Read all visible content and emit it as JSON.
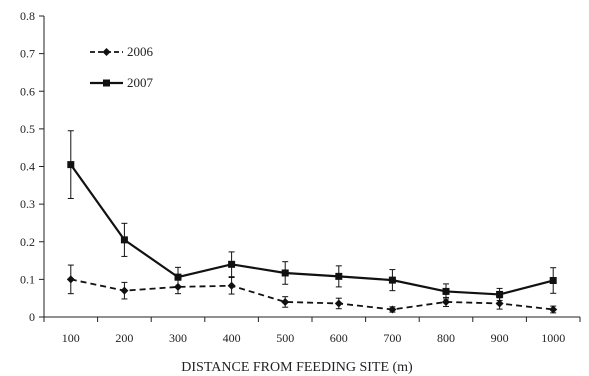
{
  "chart_data": {
    "type": "line",
    "title": "",
    "xlabel": "DISTANCE FROM FEEDING SITE (m)",
    "ylabel": "",
    "x": [
      100,
      200,
      300,
      400,
      500,
      600,
      700,
      800,
      900,
      1000
    ],
    "x_tick_labels": [
      "100",
      "200",
      "300",
      "400",
      "500",
      "600",
      "700",
      "800",
      "900",
      "1000"
    ],
    "y_tick_labels": [
      "0",
      "0.1",
      "0.2",
      "0.3",
      "0.4",
      "0.5",
      "0.6",
      "0.7",
      "0.8"
    ],
    "ylim": [
      0,
      0.8
    ],
    "yticks": [
      0,
      0.1,
      0.2,
      0.3,
      0.4,
      0.5,
      0.6,
      0.7,
      0.8
    ],
    "grid": false,
    "legend_position": "top-left",
    "series": [
      {
        "name": "2006",
        "style": "dashed",
        "marker": "diamond",
        "color": "#111111",
        "values": [
          0.1,
          0.07,
          0.08,
          0.083,
          0.04,
          0.036,
          0.02,
          0.04,
          0.036,
          0.02
        ],
        "errors": [
          0.038,
          0.022,
          0.018,
          0.022,
          0.014,
          0.014,
          0.007,
          0.012,
          0.015,
          0.009
        ]
      },
      {
        "name": "2007",
        "style": "solid",
        "marker": "square",
        "color": "#111111",
        "values": [
          0.405,
          0.205,
          0.106,
          0.14,
          0.117,
          0.108,
          0.098,
          0.068,
          0.06,
          0.097
        ],
        "errors": [
          0.09,
          0.044,
          0.026,
          0.033,
          0.03,
          0.028,
          0.028,
          0.02,
          0.016,
          0.034
        ]
      }
    ]
  }
}
